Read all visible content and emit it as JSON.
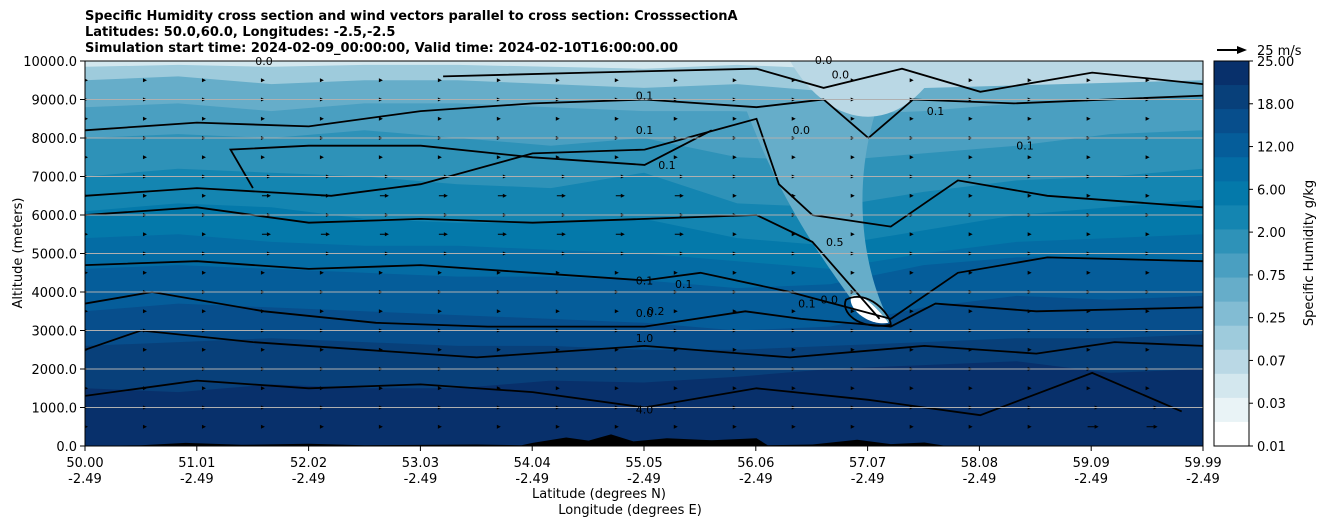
{
  "title": {
    "line1": "Specific Humidity cross section and wind vectors parallel to cross section: CrosssectionA",
    "line2": "Latitudes: 50.0,60.0, Longitudes: -2.5,-2.5",
    "line3": "Simulation start time: 2024-02-09_00:00:00, Valid time: 2024-02-10T16:00:00.00"
  },
  "chart_data": {
    "type": "heatmap",
    "variable": "Specific Humidity",
    "colorbar_label": "Specific Humidity g/kg",
    "colorbar_ticks": [
      "25.00",
      "18.00",
      "12.00",
      "6.00",
      "2.00",
      "0.75",
      "0.25",
      "0.07",
      "0.03",
      "0.01"
    ],
    "colorbar_colors": [
      "#08306b",
      "#08407a",
      "#074e8c",
      "#055d9a",
      "#046ca4",
      "#0479aa",
      "#1485b1",
      "#2e92b8",
      "#4a9fc1",
      "#66adc9",
      "#82bcd3",
      "#9ecbdc",
      "#bad8e5",
      "#d3e7ee",
      "#e9f3f6",
      "#ffffff"
    ],
    "y_axis": {
      "label": "Altitude (meters)",
      "range": [
        0,
        10000
      ],
      "ticks": [
        "0.0",
        "1000.0",
        "2000.0",
        "3000.0",
        "4000.0",
        "5000.0",
        "6000.0",
        "7000.0",
        "8000.0",
        "9000.0",
        "10000.0"
      ]
    },
    "x_axis": {
      "label1": "Latitude (degrees N)",
      "label2": "Longitude (degrees E)",
      "range": [
        50.0,
        59.99
      ],
      "latitudes": [
        "50.00",
        "51.01",
        "52.02",
        "53.03",
        "54.04",
        "55.05",
        "56.06",
        "57.07",
        "58.08",
        "59.09",
        "59.99"
      ],
      "longitudes": [
        "-2.49",
        "-2.49",
        "-2.49",
        "-2.49",
        "-2.49",
        "-2.49",
        "-2.49",
        "-2.49",
        "-2.49",
        "-2.49",
        "-2.49"
      ]
    },
    "wind_reference": "25 m/s",
    "contour_labels": [
      {
        "text": "0.0",
        "lat": 51.6,
        "alt": 9900
      },
      {
        "text": "0.0",
        "lat": 56.6,
        "alt": 9920
      },
      {
        "text": "0.0",
        "lat": 56.75,
        "alt": 9550
      },
      {
        "text": "0.1",
        "lat": 55.0,
        "alt": 9000
      },
      {
        "text": "0.1",
        "lat": 57.6,
        "alt": 8600
      },
      {
        "text": "0.0",
        "lat": 56.4,
        "alt": 8100
      },
      {
        "text": "0.1",
        "lat": 58.4,
        "alt": 7700
      },
      {
        "text": "0.1",
        "lat": 55.0,
        "alt": 8100
      },
      {
        "text": "0.1",
        "lat": 55.2,
        "alt": 7200
      },
      {
        "text": "0.5",
        "lat": 56.7,
        "alt": 5200
      },
      {
        "text": "0.1",
        "lat": 55.0,
        "alt": 4200
      },
      {
        "text": "0.1",
        "lat": 55.35,
        "alt": 4100
      },
      {
        "text": "0.0",
        "lat": 56.65,
        "alt": 3700
      },
      {
        "text": "0.1",
        "lat": 56.45,
        "alt": 3600
      },
      {
        "text": "0.2",
        "lat": 55.1,
        "alt": 3400
      },
      {
        "text": "0.0",
        "lat": 55.0,
        "alt": 3350
      },
      {
        "text": "1.0",
        "lat": 55.0,
        "alt": 2700
      },
      {
        "text": "4.0",
        "lat": 55.0,
        "alt": 850
      }
    ]
  }
}
